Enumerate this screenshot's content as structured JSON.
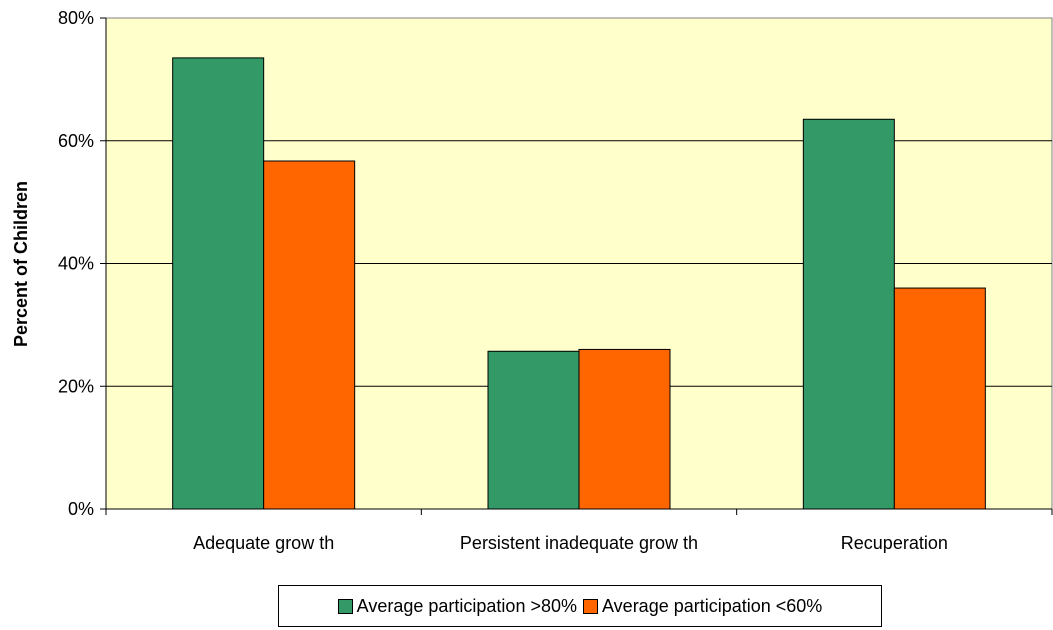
{
  "chart_data": {
    "type": "bar",
    "title": "",
    "xlabel": "",
    "ylabel": "Percent of Children",
    "categories": [
      "Adequate grow th",
      "Persistent inadequate grow th",
      "Recuperation"
    ],
    "series": [
      {
        "name": "Average participation >80%",
        "values": [
          73.5,
          25.7,
          63.5
        ],
        "color": "#339966"
      },
      {
        "name": "Average participation <60%",
        "values": [
          56.7,
          26.0,
          36.0
        ],
        "color": "#FF6600"
      }
    ],
    "ylim": [
      0,
      80
    ],
    "yticks": [
      0,
      20,
      40,
      60,
      80
    ],
    "ytick_labels": [
      "0%",
      "20%",
      "40%",
      "60%",
      "80%"
    ],
    "grid": true,
    "legend_position": "bottom",
    "plot_background": "#FFFFCC"
  }
}
